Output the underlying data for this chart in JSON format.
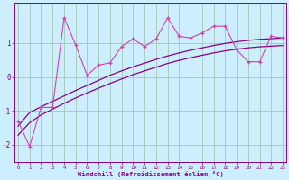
{
  "title": "",
  "xlabel": "Windchill (Refroidissement éolien,°C)",
  "ylabel": "",
  "bg_color": "#cceeff",
  "grid_color": "#aaccbb",
  "line_color": "#880088",
  "line_color_scatter": "#cc44aa",
  "x_data": [
    0,
    1,
    2,
    3,
    4,
    5,
    6,
    7,
    8,
    9,
    10,
    11,
    12,
    13,
    14,
    15,
    16,
    17,
    18,
    19,
    20,
    21,
    22,
    23
  ],
  "y_scatter": [
    -1.3,
    -2.05,
    -0.9,
    -0.9,
    1.75,
    0.95,
    0.05,
    0.35,
    0.42,
    0.9,
    1.12,
    0.9,
    1.12,
    1.75,
    1.2,
    1.15,
    1.3,
    1.5,
    1.5,
    0.8,
    0.45,
    0.45,
    1.2,
    1.15
  ],
  "y_line1": [
    -1.45,
    -1.05,
    -0.88,
    -0.72,
    -0.56,
    -0.4,
    -0.25,
    -0.1,
    0.05,
    0.18,
    0.3,
    0.41,
    0.52,
    0.62,
    0.71,
    0.79,
    0.86,
    0.93,
    0.99,
    1.04,
    1.08,
    1.11,
    1.13,
    1.15
  ],
  "y_line2": [
    -1.72,
    -1.35,
    -1.12,
    -0.95,
    -0.78,
    -0.62,
    -0.47,
    -0.33,
    -0.19,
    -0.06,
    0.07,
    0.18,
    0.29,
    0.4,
    0.49,
    0.57,
    0.64,
    0.71,
    0.77,
    0.82,
    0.86,
    0.89,
    0.91,
    0.93
  ],
  "ylim": [
    -2.5,
    2.2
  ],
  "xlim": [
    -0.3,
    23.3
  ],
  "yticks": [
    -2,
    -1,
    0,
    1
  ],
  "xticks": [
    0,
    1,
    2,
    3,
    4,
    5,
    6,
    7,
    8,
    9,
    10,
    11,
    12,
    13,
    14,
    15,
    16,
    17,
    18,
    19,
    20,
    21,
    22,
    23
  ],
  "figsize": [
    3.2,
    2.0
  ],
  "dpi": 100
}
